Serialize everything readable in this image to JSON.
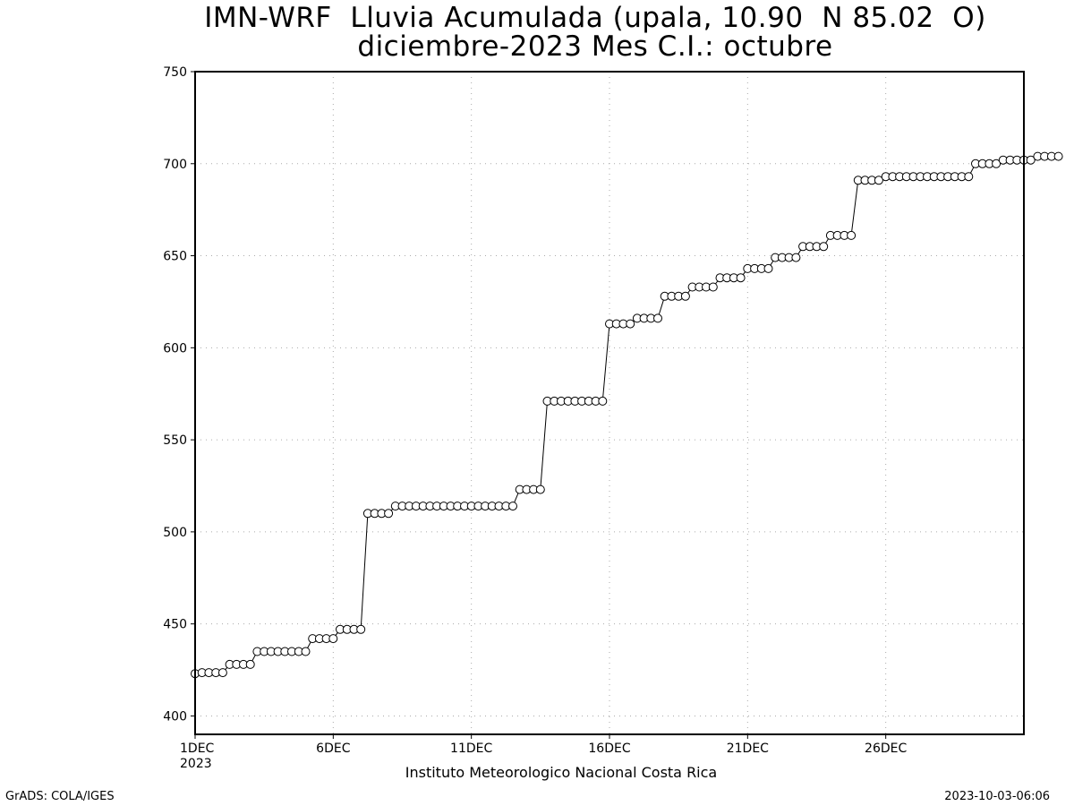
{
  "chart_data": {
    "type": "line",
    "title_line1": "IMN-WRF  Lluvia Acumulada (upala, 10.90  N 85.02  O)",
    "title_line2": "diciembre-2023 Mes C.I.: octubre",
    "xlabel": "Instituto Meteorologico Nacional Costa Rica",
    "ylabel": "",
    "ylim": [
      390,
      750
    ],
    "xlim": [
      0,
      30
    ],
    "y_ticks": [
      400,
      450,
      500,
      550,
      600,
      650,
      700,
      750
    ],
    "x_ticks": [
      {
        "x": 0,
        "label": "1DEC"
      },
      {
        "x": 5,
        "label": "6DEC"
      },
      {
        "x": 10,
        "label": "11DEC"
      },
      {
        "x": 15,
        "label": "16DEC"
      },
      {
        "x": 20,
        "label": "21DEC"
      },
      {
        "x": 25,
        "label": "26DEC"
      }
    ],
    "x_year_label": "2023",
    "grid": true,
    "marker": "open-circle",
    "x_step_days": 0.25,
    "series": [
      {
        "name": "",
        "values": [
          423,
          423.5,
          423.5,
          423.5,
          423.5,
          428,
          428,
          428,
          428,
          435,
          435,
          435,
          435,
          435,
          435,
          435,
          435,
          442,
          442,
          442,
          442,
          447,
          447,
          447,
          447,
          510,
          510,
          510,
          510,
          514,
          514,
          514,
          514,
          514,
          514,
          514,
          514,
          514,
          514,
          514,
          514,
          514,
          514,
          514,
          514,
          514,
          514,
          523,
          523,
          523,
          523,
          571,
          571,
          571,
          571,
          571,
          571,
          571,
          571,
          571,
          613,
          613,
          613,
          613,
          616,
          616,
          616,
          616,
          628,
          628,
          628,
          628,
          633,
          633,
          633,
          633,
          638,
          638,
          638,
          638,
          643,
          643,
          643,
          643,
          649,
          649,
          649,
          649,
          655,
          655,
          655,
          655,
          661,
          661,
          661,
          661,
          691,
          691,
          691,
          691,
          693,
          693,
          693,
          693,
          693,
          693,
          693,
          693,
          693,
          693,
          693,
          693,
          693,
          700,
          700,
          700,
          700,
          702,
          702,
          702,
          702,
          702,
          704,
          704,
          704,
          704
        ]
      }
    ]
  },
  "footer": {
    "left": "GrADS: COLA/IGES",
    "right": "2023-10-03-06:06"
  }
}
